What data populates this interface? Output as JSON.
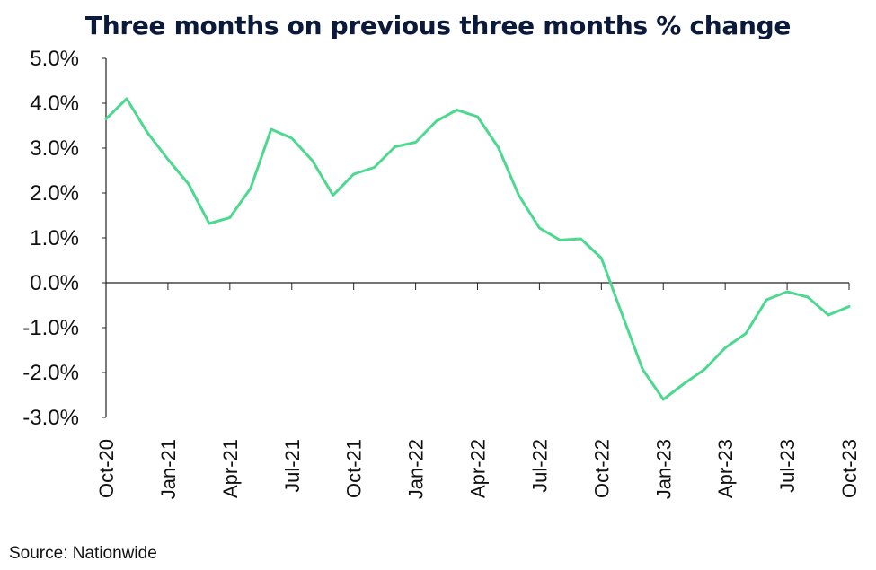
{
  "chart_data": {
    "type": "line",
    "title": "Three months on previous three months % change",
    "xlabel": "",
    "ylabel": "",
    "ylim": [
      -3.0,
      5.0
    ],
    "yticks": [
      "5.0%",
      "4.0%",
      "3.0%",
      "2.0%",
      "1.0%",
      "0.0%",
      "-1.0%",
      "-2.0%",
      "-3.0%"
    ],
    "ytick_values": [
      5,
      4,
      3,
      2,
      1,
      0,
      -1,
      -2,
      -3
    ],
    "xtick_labels": [
      "Oct-20",
      "Jan-21",
      "Apr-21",
      "Jul-21",
      "Oct-21",
      "Jan-22",
      "Apr-22",
      "Jul-22",
      "Oct-22",
      "Jan-23",
      "Apr-23",
      "Jul-23",
      "Oct-23"
    ],
    "x": [
      "Oct-20",
      "Nov-20",
      "Dec-20",
      "Jan-21",
      "Feb-21",
      "Mar-21",
      "Apr-21",
      "May-21",
      "Jun-21",
      "Jul-21",
      "Aug-21",
      "Sep-21",
      "Oct-21",
      "Nov-21",
      "Dec-21",
      "Jan-22",
      "Feb-22",
      "Mar-22",
      "Apr-22",
      "May-22",
      "Jun-22",
      "Jul-22",
      "Aug-22",
      "Sep-22",
      "Oct-22",
      "Nov-22",
      "Dec-22",
      "Jan-23",
      "Feb-23",
      "Mar-23",
      "Apr-23",
      "May-23",
      "Jun-23",
      "Jul-23",
      "Aug-23",
      "Sep-23",
      "Oct-23"
    ],
    "series": [
      {
        "values": [
          3.65,
          4.1,
          3.35,
          2.75,
          2.2,
          1.32,
          1.45,
          2.1,
          3.42,
          3.22,
          2.72,
          1.95,
          2.42,
          2.57,
          3.03,
          3.13,
          3.6,
          3.85,
          3.7,
          3.02,
          1.95,
          1.22,
          0.95,
          0.98,
          0.55,
          -0.7,
          -1.93,
          -2.6,
          -2.25,
          -1.93,
          -1.45,
          -1.13,
          -0.38,
          -0.2,
          -0.32,
          -0.72,
          -0.53
        ],
        "color": "#4cd98f"
      }
    ],
    "grid": false,
    "legend": "none"
  },
  "source": "Source: Nationwide"
}
